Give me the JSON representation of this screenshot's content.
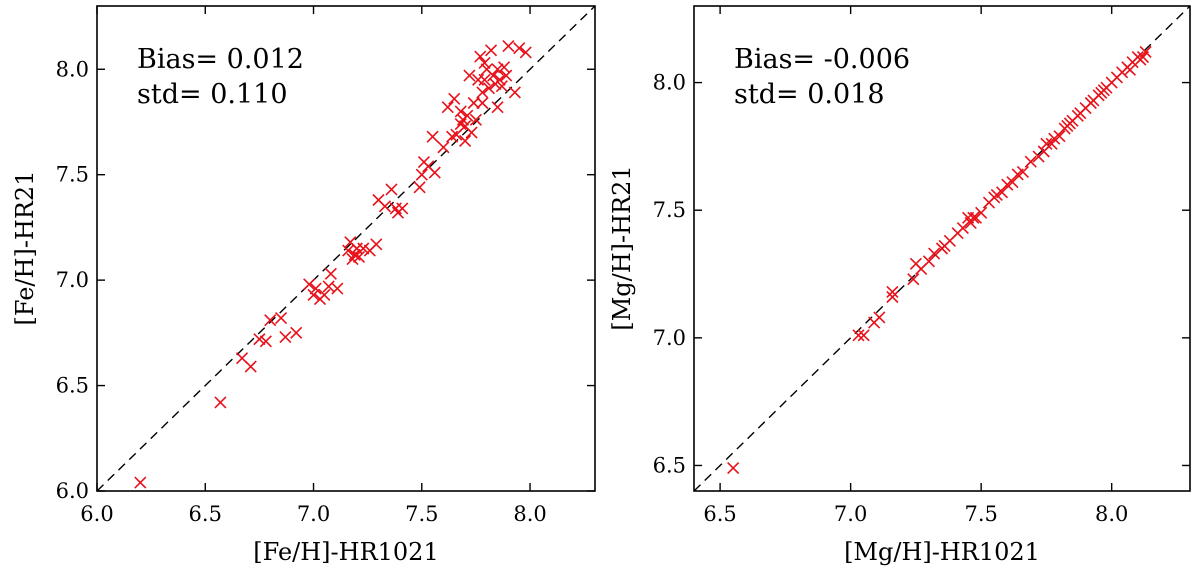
{
  "chart_data": [
    {
      "type": "scatter",
      "xlabel": "[Fe/H]-HR1021",
      "ylabel": "[Fe/H]-HR21",
      "xlim": [
        6.0,
        8.3
      ],
      "ylim": [
        6.0,
        8.3
      ],
      "xticks": [
        "6.0",
        "6.5",
        "7.0",
        "7.5",
        "8.0"
      ],
      "yticks": [
        "6.0",
        "6.5",
        "7.0",
        "7.5",
        "8.0"
      ],
      "annotations": [
        "Bias= 0.012",
        "std= 0.110"
      ],
      "marker_color": "#e8111a",
      "identity_line": true,
      "points": [
        [
          6.2,
          6.04
        ],
        [
          6.57,
          6.42
        ],
        [
          6.67,
          6.63
        ],
        [
          6.71,
          6.59
        ],
        [
          6.75,
          6.72
        ],
        [
          6.78,
          6.71
        ],
        [
          6.8,
          6.81
        ],
        [
          6.85,
          6.82
        ],
        [
          6.87,
          6.73
        ],
        [
          6.92,
          6.75
        ],
        [
          6.98,
          6.98
        ],
        [
          7.0,
          6.93
        ],
        [
          7.01,
          6.96
        ],
        [
          7.03,
          6.91
        ],
        [
          7.05,
          6.93
        ],
        [
          7.07,
          6.97
        ],
        [
          7.08,
          7.03
        ],
        [
          7.11,
          6.96
        ],
        [
          7.16,
          7.14
        ],
        [
          7.17,
          7.18
        ],
        [
          7.18,
          7.1
        ],
        [
          7.19,
          7.12
        ],
        [
          7.2,
          7.15
        ],
        [
          7.21,
          7.11
        ],
        [
          7.23,
          7.15
        ],
        [
          7.26,
          7.14
        ],
        [
          7.29,
          7.17
        ],
        [
          7.3,
          7.38
        ],
        [
          7.33,
          7.35
        ],
        [
          7.36,
          7.43
        ],
        [
          7.38,
          7.34
        ],
        [
          7.39,
          7.32
        ],
        [
          7.41,
          7.34
        ],
        [
          7.49,
          7.44
        ],
        [
          7.5,
          7.5
        ],
        [
          7.51,
          7.56
        ],
        [
          7.53,
          7.54
        ],
        [
          7.55,
          7.68
        ],
        [
          7.56,
          7.51
        ],
        [
          7.6,
          7.63
        ],
        [
          7.62,
          7.82
        ],
        [
          7.64,
          7.68
        ],
        [
          7.65,
          7.86
        ],
        [
          7.66,
          7.69
        ],
        [
          7.68,
          7.74
        ],
        [
          7.69,
          7.76
        ],
        [
          7.7,
          7.73
        ],
        [
          7.71,
          7.78
        ],
        [
          7.72,
          7.97
        ],
        [
          7.73,
          7.7
        ],
        [
          7.74,
          7.84
        ],
        [
          7.75,
          7.76
        ],
        [
          7.76,
          7.95
        ],
        [
          7.77,
          8.06
        ],
        [
          7.78,
          7.89
        ],
        [
          7.79,
          7.95
        ],
        [
          7.8,
          8.0
        ],
        [
          7.81,
          7.91
        ],
        [
          7.82,
          8.09
        ],
        [
          7.83,
          7.97
        ],
        [
          7.84,
          7.93
        ],
        [
          7.85,
          8.0
        ],
        [
          7.86,
          7.95
        ],
        [
          7.87,
          7.92
        ],
        [
          7.88,
          8.01
        ],
        [
          7.9,
          8.11
        ],
        [
          7.93,
          7.89
        ],
        [
          7.95,
          8.1
        ],
        [
          7.98,
          8.08
        ],
        [
          7.7,
          7.66
        ],
        [
          7.68,
          7.8
        ],
        [
          7.79,
          8.03
        ],
        [
          7.78,
          7.84
        ],
        [
          7.85,
          7.82
        ],
        [
          7.89,
          7.97
        ]
      ]
    },
    {
      "type": "scatter",
      "xlabel": "[Mg/H]-HR1021",
      "ylabel": "[Mg/H]-HR21",
      "xlim": [
        6.4,
        8.3
      ],
      "ylim": [
        6.4,
        8.3
      ],
      "xticks": [
        "6.5",
        "7.0",
        "7.5",
        "8.0"
      ],
      "yticks": [
        "6.5",
        "7.0",
        "7.5",
        "8.0"
      ],
      "annotations": [
        "Bias= -0.006",
        "std= 0.018"
      ],
      "marker_color": "#e8111a",
      "identity_line": true,
      "points": [
        [
          6.55,
          6.49
        ],
        [
          7.03,
          7.01
        ],
        [
          7.05,
          7.01
        ],
        [
          7.09,
          7.06
        ],
        [
          7.11,
          7.08
        ],
        [
          7.16,
          7.16
        ],
        [
          7.16,
          7.18
        ],
        [
          7.24,
          7.23
        ],
        [
          7.25,
          7.29
        ],
        [
          7.27,
          7.27
        ],
        [
          7.3,
          7.3
        ],
        [
          7.32,
          7.33
        ],
        [
          7.35,
          7.35
        ],
        [
          7.38,
          7.38
        ],
        [
          7.41,
          7.41
        ],
        [
          7.43,
          7.43
        ],
        [
          7.45,
          7.47
        ],
        [
          7.46,
          7.45
        ],
        [
          7.47,
          7.47
        ],
        [
          7.48,
          7.47
        ],
        [
          7.5,
          7.49
        ],
        [
          7.53,
          7.53
        ],
        [
          7.56,
          7.56
        ],
        [
          7.58,
          7.57
        ],
        [
          7.6,
          7.6
        ],
        [
          7.62,
          7.61
        ],
        [
          7.64,
          7.64
        ],
        [
          7.66,
          7.65
        ],
        [
          7.72,
          7.71
        ],
        [
          7.74,
          7.73
        ],
        [
          7.75,
          7.76
        ],
        [
          7.77,
          7.76
        ],
        [
          7.78,
          7.78
        ],
        [
          7.8,
          7.79
        ],
        [
          7.82,
          7.82
        ],
        [
          7.84,
          7.84
        ],
        [
          7.85,
          7.85
        ],
        [
          7.87,
          7.87
        ],
        [
          7.88,
          7.88
        ],
        [
          7.9,
          7.9
        ],
        [
          7.92,
          7.92
        ],
        [
          7.93,
          7.93
        ],
        [
          7.95,
          7.95
        ],
        [
          7.96,
          7.96
        ],
        [
          7.98,
          7.98
        ],
        [
          8.0,
          8.0
        ],
        [
          8.02,
          8.02
        ],
        [
          8.04,
          8.04
        ],
        [
          8.06,
          8.06
        ],
        [
          8.08,
          8.08
        ],
        [
          8.1,
          8.1
        ],
        [
          8.12,
          8.1
        ],
        [
          8.13,
          8.12
        ],
        [
          8.11,
          8.09
        ],
        [
          8.07,
          8.05
        ],
        [
          7.97,
          7.97
        ],
        [
          7.83,
          7.83
        ],
        [
          7.69,
          7.69
        ],
        [
          7.55,
          7.55
        ],
        [
          7.36,
          7.36
        ]
      ]
    }
  ]
}
